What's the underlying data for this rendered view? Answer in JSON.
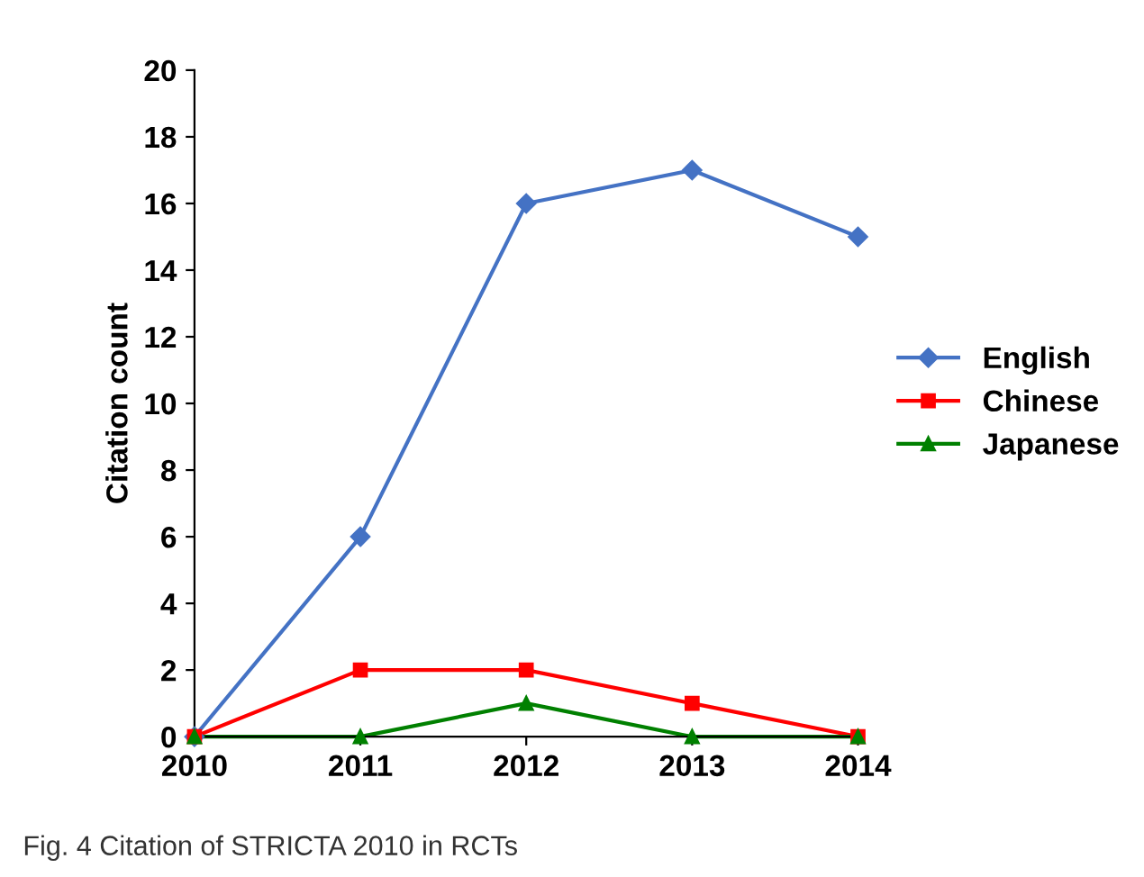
{
  "chart_data": {
    "type": "line",
    "ylabel": "Citation count",
    "x": [
      2010,
      2011,
      2012,
      2013,
      2014
    ],
    "series": [
      {
        "name": "English",
        "color": "#4472c4",
        "marker": "diamond",
        "values": [
          0,
          6,
          16,
          17,
          15
        ]
      },
      {
        "name": "Chinese",
        "color": "#ff0000",
        "marker": "square",
        "values": [
          0,
          2,
          2,
          1,
          0
        ]
      },
      {
        "name": "Japanese",
        "color": "#008000",
        "marker": "triangle",
        "values": [
          0,
          0,
          1,
          0,
          0
        ]
      }
    ],
    "xlim": [
      2010,
      2014
    ],
    "xticks": [
      2010,
      2011,
      2012,
      2013,
      2014
    ],
    "ylim": [
      0,
      20
    ],
    "yticks": [
      0,
      2,
      4,
      6,
      8,
      10,
      12,
      14,
      16,
      18,
      20
    ],
    "grid": false,
    "legend": "right",
    "line_style": "solid",
    "annotations": [
      "Fig. 4 Citation of STRICTA 2010 in RCTs"
    ]
  }
}
